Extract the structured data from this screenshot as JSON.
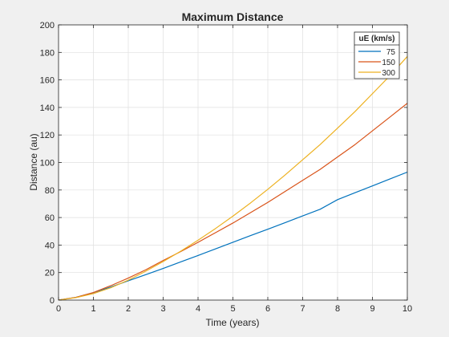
{
  "chart_data": {
    "type": "line",
    "title": "Maximum Distance",
    "xlabel": "Time (years)",
    "ylabel": "Distance (au)",
    "xlim": [
      0,
      10
    ],
    "ylim": [
      0,
      200
    ],
    "xticks": [
      0,
      1,
      2,
      3,
      4,
      5,
      6,
      7,
      8,
      9,
      10
    ],
    "yticks": [
      0,
      20,
      40,
      60,
      80,
      100,
      120,
      140,
      160,
      180,
      200
    ],
    "grid": true,
    "legend": {
      "title": "uE (km/s)",
      "position": "top-right"
    },
    "x": [
      0,
      0.5,
      1,
      1.5,
      2,
      2.5,
      3,
      3.5,
      4,
      4.5,
      5,
      5.5,
      6,
      6.5,
      7,
      7.5,
      8,
      8.5,
      9,
      9.5,
      10
    ],
    "series": [
      {
        "name": "75",
        "color": "#0072bd",
        "values": [
          0,
          2.0,
          5.4,
          9.5,
          14.0,
          18.5,
          23.0,
          27.7,
          32.4,
          37.2,
          42.0,
          46.8,
          51.5,
          56.3,
          61.2,
          66.0,
          73.0,
          78.0,
          83.0,
          88.0,
          93.0
        ]
      },
      {
        "name": "150",
        "color": "#d95319",
        "values": [
          0,
          2.0,
          5.5,
          10.5,
          16.0,
          22.0,
          28.8,
          35.2,
          42.0,
          49.0,
          56.0,
          63.5,
          71.0,
          79.0,
          87.0,
          95.0,
          104.0,
          113.0,
          123.0,
          133.0,
          143.0
        ]
      },
      {
        "name": "300",
        "color": "#edb120",
        "values": [
          0,
          1.8,
          4.7,
          9.0,
          14.5,
          21.0,
          28.0,
          35.5,
          43.5,
          52.0,
          61.0,
          70.5,
          80.5,
          91.0,
          102.0,
          113.0,
          125.0,
          137.0,
          150.0,
          163.0,
          177.0
        ]
      }
    ]
  }
}
